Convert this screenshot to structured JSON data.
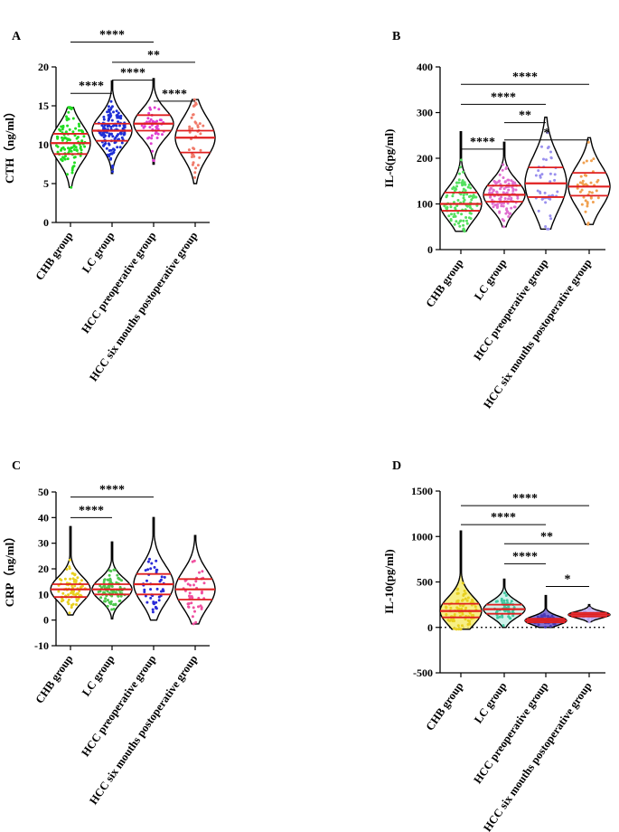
{
  "chart_data": [
    {
      "type": "violin",
      "panel": "A",
      "ylabel": "CTH（ng/ml）",
      "ylim": [
        0,
        20
      ],
      "yticks": [
        0,
        5,
        10,
        15,
        20
      ],
      "categories": [
        "CHB group",
        "LC group",
        "HCC  preoperative group",
        "HCC six mouths  postoperative group"
      ],
      "colors": [
        "#22dd22",
        "#1f2fd6",
        "#e040d0",
        "#f07a6a"
      ],
      "groups": [
        {
          "min": 4.5,
          "max": 14.8,
          "median": 10.2,
          "q1": 8.8,
          "q3": 11.4,
          "n": 110,
          "jitter": 0.75
        },
        {
          "min": 6.3,
          "max": 18.2,
          "median": 11.8,
          "q1": 10.5,
          "q3": 12.7,
          "n": 140,
          "jitter": 0.75
        },
        {
          "min": 7.5,
          "max": 18.5,
          "median": 12.7,
          "q1": 11.8,
          "q3": 13.8,
          "n": 45,
          "jitter": 0.6
        },
        {
          "min": 5.0,
          "max": 15.8,
          "median": 10.9,
          "q1": 9.0,
          "q3": 11.8,
          "n": 40,
          "jitter": 0.55
        }
      ],
      "significance": [
        {
          "from": 0,
          "to": 2,
          "label": "****",
          "y": 23.2
        },
        {
          "from": 1,
          "to": 3,
          "label": "**",
          "y": 20.6
        },
        {
          "from": 0,
          "to": 1,
          "label": "****",
          "y": 16.6
        },
        {
          "from": 1,
          "to": 2,
          "label": "****",
          "y": 18.3
        },
        {
          "from": 2,
          "to": 3,
          "label": "****",
          "y": 15.6
        }
      ]
    },
    {
      "type": "violin",
      "panel": "B",
      "ylabel": "IL-6(pg/ml)",
      "ylim": [
        0,
        400
      ],
      "yticks": [
        0,
        100,
        200,
        300,
        400
      ],
      "categories": [
        "CHB group",
        "LC group",
        "HCC preoperative group",
        "HCC six mouths postoperative group"
      ],
      "colors": [
        "#55e060",
        "#e070d0",
        "#9a90ee",
        "#f0a050"
      ],
      "groups": [
        {
          "min": 40,
          "max": 258,
          "median": 100,
          "q1": 85,
          "q3": 125,
          "n": 110,
          "jitter": 0.8
        },
        {
          "min": 50,
          "max": 235,
          "median": 120,
          "q1": 105,
          "q3": 140,
          "n": 120,
          "jitter": 0.75
        },
        {
          "min": 45,
          "max": 290,
          "median": 145,
          "q1": 115,
          "q3": 180,
          "n": 45,
          "jitter": 0.6
        },
        {
          "min": 55,
          "max": 245,
          "median": 138,
          "q1": 118,
          "q3": 168,
          "n": 40,
          "jitter": 0.6
        }
      ],
      "significance": [
        {
          "from": 0,
          "to": 3,
          "label": "****",
          "y": 362
        },
        {
          "from": 0,
          "to": 2,
          "label": "****",
          "y": 318
        },
        {
          "from": 1,
          "to": 2,
          "label": "**",
          "y": 278
        },
        {
          "from": 0,
          "to": 1,
          "label": "****",
          "y": 220
        },
        {
          "from": 1,
          "to": 3,
          "label": "*",
          "y": 240
        }
      ]
    },
    {
      "type": "violin",
      "panel": "C",
      "ylabel": "CRP（ng/ml）",
      "ylim": [
        -10,
        50
      ],
      "yticks": [
        -10,
        0,
        10,
        20,
        30,
        40,
        50
      ],
      "categories": [
        "CHB group",
        "LC group",
        "HCC preoperative group",
        "HCC six mouths postoperative group"
      ],
      "colors": [
        "#e8d020",
        "#4ec84e",
        "#2a2ad8",
        "#f050a0"
      ],
      "groups": [
        {
          "min": 2,
          "max": 36.5,
          "median": 12,
          "q1": 9,
          "q3": 14,
          "n": 80,
          "jitter": 0.75
        },
        {
          "min": 0.5,
          "max": 30.5,
          "median": 12,
          "q1": 10,
          "q3": 14,
          "n": 90,
          "jitter": 0.75
        },
        {
          "min": 0,
          "max": 40,
          "median": 14,
          "q1": 10,
          "q3": 18,
          "n": 45,
          "jitter": 0.6
        },
        {
          "min": -1.5,
          "max": 33,
          "median": 12,
          "q1": 8,
          "q3": 16,
          "n": 40,
          "jitter": 0.6
        }
      ],
      "significance": [
        {
          "from": 0,
          "to": 2,
          "label": "****",
          "y": 48
        },
        {
          "from": 0,
          "to": 1,
          "label": "****",
          "y": 40
        }
      ]
    },
    {
      "type": "violin",
      "panel": "D",
      "ylabel": "IL-10(pg/ml)",
      "ylim": [
        -500,
        1500
      ],
      "yticks": [
        -500,
        0,
        500,
        1000,
        1500
      ],
      "zero_line": true,
      "categories": [
        "CHB group",
        "LC group",
        "HCC preoperative group",
        "HCC six mouths postoperative group"
      ],
      "colors": [
        "#e8d020",
        "#40c8a0",
        "#4a3ab8",
        "#b8a8f0"
      ],
      "groups": [
        {
          "min": -20,
          "max": 1060,
          "median": 180,
          "q1": 110,
          "q3": 260,
          "n": 90,
          "jitter": 0.75,
          "fill": "#f6ec70"
        },
        {
          "min": 0,
          "max": 530,
          "median": 200,
          "q1": 150,
          "q3": 250,
          "n": 50,
          "jitter": 0.6,
          "fill": "#c8f0e8"
        },
        {
          "min": 0,
          "max": 350,
          "median": 75,
          "q1": 55,
          "q3": 95,
          "n": 40,
          "jitter": 0.6,
          "fill": "#6a5acd"
        },
        {
          "min": 60,
          "max": 250,
          "median": 140,
          "q1": 120,
          "q3": 160,
          "n": 40,
          "jitter": 0.5,
          "fill": "#c8b8f8"
        }
      ],
      "significance": [
        {
          "from": 0,
          "to": 3,
          "label": "****",
          "y": 1340
        },
        {
          "from": 0,
          "to": 2,
          "label": "****",
          "y": 1130
        },
        {
          "from": 1,
          "to": 3,
          "label": "**",
          "y": 920
        },
        {
          "from": 1,
          "to": 2,
          "label": "****",
          "y": 700
        },
        {
          "from": 2,
          "to": 3,
          "label": "*",
          "y": 450
        }
      ]
    }
  ]
}
